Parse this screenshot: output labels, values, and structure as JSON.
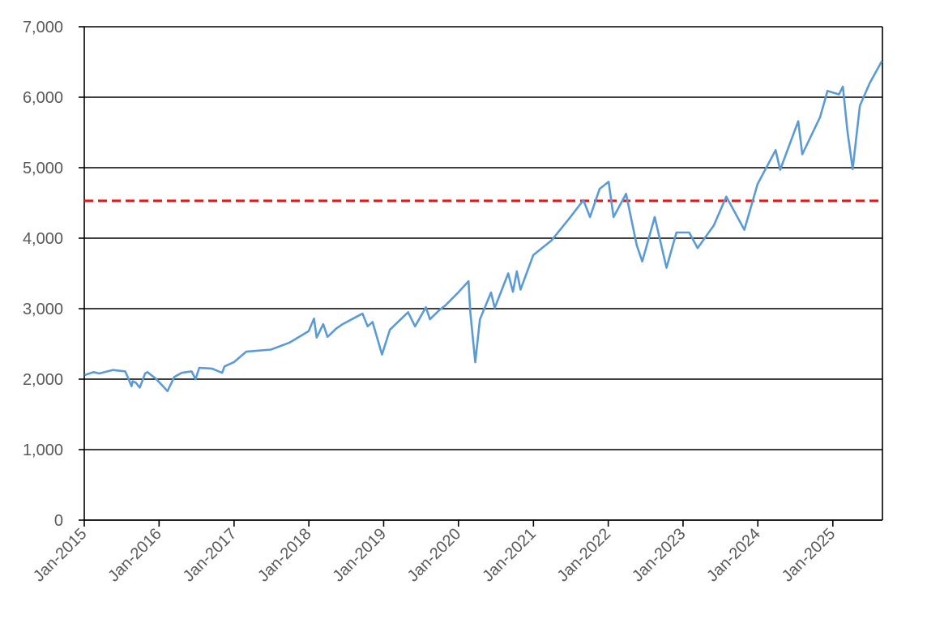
{
  "chart_data": {
    "type": "line",
    "title": "",
    "xlabel": "",
    "ylabel": "",
    "ylim": [
      0,
      7000
    ],
    "xlim": [
      "2015-01-01",
      "2025-08-31"
    ],
    "y_ticks": [
      0,
      1000,
      2000,
      3000,
      4000,
      5000,
      6000,
      7000
    ],
    "y_tick_labels": [
      "0",
      "1,000",
      "2,000",
      "3,000",
      "4,000",
      "5,000",
      "6,000",
      "7,000"
    ],
    "x_ticks": [
      "2015-01-01",
      "2016-01-01",
      "2017-01-01",
      "2018-01-01",
      "2019-01-01",
      "2020-01-01",
      "2021-01-01",
      "2022-01-01",
      "2023-01-01",
      "2024-01-01",
      "2025-01-01"
    ],
    "x_tick_labels": [
      "Jan-2015",
      "Jan-2016",
      "Jan-2017",
      "Jan-2018",
      "Jan-2019",
      "Jan-2020",
      "Jan-2021",
      "Jan-2022",
      "Jan-2023",
      "Jan-2024",
      "Jan-2025"
    ],
    "grid": "horizontal",
    "legend": "none",
    "colors": {
      "series": "#5b9bd5",
      "reference_line": "#e31a1c",
      "grid": "#000000",
      "text": "#595959"
    },
    "reference_line": {
      "y": 4530,
      "style": "dashed"
    },
    "series": [
      {
        "x": [
          "2015-01-02",
          "2015-02-15",
          "2015-03-15",
          "2015-05-20",
          "2015-07-20",
          "2015-08-20",
          "2015-08-25",
          "2015-09-10",
          "2015-09-29",
          "2015-10-25",
          "2015-11-05",
          "2015-12-15",
          "2016-01-20",
          "2016-02-11",
          "2016-03-15",
          "2016-04-20",
          "2016-06-08",
          "2016-06-27",
          "2016-07-15",
          "2016-09-15",
          "2016-11-04",
          "2016-11-15",
          "2016-12-31",
          "2017-03-01",
          "2017-06-30",
          "2017-09-30",
          "2017-12-31",
          "2018-01-26",
          "2018-02-08",
          "2018-03-12",
          "2018-04-02",
          "2018-05-15",
          "2018-06-15",
          "2018-08-31",
          "2018-09-20",
          "2018-10-15",
          "2018-11-08",
          "2018-12-24",
          "2019-01-31",
          "2019-04-30",
          "2019-06-03",
          "2019-07-26",
          "2019-08-15",
          "2019-09-30",
          "2019-10-31",
          "2019-12-31",
          "2020-02-19",
          "2020-02-28",
          "2020-03-23",
          "2020-04-15",
          "2020-06-08",
          "2020-06-26",
          "2020-08-31",
          "2020-09-23",
          "2020-10-12",
          "2020-10-30",
          "2020-12-31",
          "2021-03-31",
          "2021-06-30",
          "2021-09-02",
          "2021-10-04",
          "2021-11-20",
          "2022-01-03",
          "2022-01-27",
          "2022-03-29",
          "2022-05-20",
          "2022-06-16",
          "2022-08-16",
          "2022-10-12",
          "2022-11-30",
          "2023-01-31",
          "2023-03-13",
          "2023-05-31",
          "2023-07-31",
          "2023-10-27",
          "2023-12-31",
          "2024-03-28",
          "2024-04-19",
          "2024-07-16",
          "2024-08-05",
          "2024-10-31",
          "2024-12-06",
          "2025-01-31",
          "2025-02-19",
          "2025-03-13",
          "2025-04-08",
          "2025-05-13",
          "2025-06-30",
          "2025-08-28"
        ],
        "y": [
          2058,
          2100,
          2080,
          2130,
          2110,
          1900,
          1970,
          1950,
          1880,
          2080,
          2100,
          2010,
          1900,
          1830,
          2030,
          2090,
          2110,
          2000,
          2160,
          2150,
          2090,
          2180,
          2240,
          2390,
          2420,
          2520,
          2680,
          2860,
          2590,
          2780,
          2600,
          2720,
          2780,
          2900,
          2930,
          2750,
          2810,
          2350,
          2700,
          2950,
          2750,
          3020,
          2850,
          2980,
          3050,
          3230,
          3390,
          2950,
          2240,
          2850,
          3230,
          3010,
          3500,
          3240,
          3530,
          3270,
          3760,
          3970,
          4300,
          4540,
          4300,
          4700,
          4800,
          4300,
          4630,
          3900,
          3670,
          4300,
          3580,
          4080,
          4080,
          3860,
          4180,
          4590,
          4120,
          4770,
          5250,
          4970,
          5660,
          5190,
          5720,
          6090,
          6040,
          6150,
          5520,
          4980,
          5880,
          6200,
          6510
        ]
      }
    ]
  }
}
